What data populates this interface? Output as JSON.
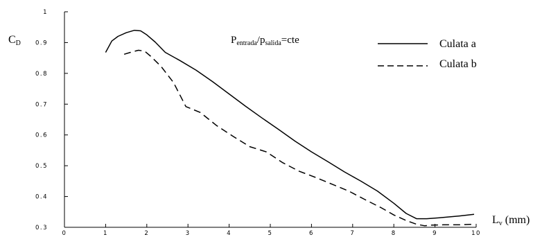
{
  "chart_data": {
    "type": "line",
    "title": "",
    "annotation": {
      "p1_main": "P",
      "p1_sub": "entrada",
      "slash": "/",
      "p2_main": "p",
      "p2_sub": "salida",
      "suffix": "=cte"
    },
    "ylabel": {
      "main": "C",
      "sub": "D"
    },
    "xlabel": {
      "main": "L",
      "sub": "v",
      "unit": " (mm)"
    },
    "xlim": [
      0,
      10
    ],
    "ylim": [
      0.3,
      1.0
    ],
    "xticks": [
      "0",
      "1",
      "2",
      "3",
      "4",
      "5",
      "6",
      "7",
      "8",
      "9",
      "10"
    ],
    "yticks": [
      "1",
      "0.9",
      "0.8",
      "0.7",
      "0.6",
      "0.5",
      "0.4",
      "0.3"
    ],
    "grid": false,
    "legend_position": "top-right",
    "series": [
      {
        "name": "Culata a",
        "style": "solid",
        "x": [
          1.0,
          1.15,
          1.3,
          1.5,
          1.7,
          1.85,
          2.0,
          2.2,
          2.45,
          2.8,
          3.2,
          3.6,
          4.0,
          4.4,
          4.8,
          5.2,
          5.6,
          6.0,
          6.4,
          6.8,
          7.2,
          7.6,
          8.0,
          8.3,
          8.55,
          8.8,
          9.2,
          9.6,
          9.95
        ],
        "values": [
          0.868,
          0.905,
          0.92,
          0.932,
          0.94,
          0.938,
          0.925,
          0.902,
          0.868,
          0.842,
          0.81,
          0.773,
          0.733,
          0.693,
          0.655,
          0.618,
          0.58,
          0.545,
          0.513,
          0.48,
          0.45,
          0.418,
          0.378,
          0.345,
          0.328,
          0.328,
          0.332,
          0.337,
          0.342
        ]
      },
      {
        "name": "Culata b",
        "style": "dashed",
        "x": [
          1.45,
          1.6,
          1.8,
          1.95,
          2.1,
          2.35,
          2.65,
          2.95,
          3.3,
          3.7,
          4.1,
          4.5,
          4.9,
          5.3,
          5.7,
          6.1,
          6.5,
          6.9,
          7.3,
          7.7,
          8.0,
          8.3,
          8.55,
          8.75,
          8.9,
          9.2,
          9.6,
          9.95
        ],
        "values": [
          0.862,
          0.868,
          0.875,
          0.872,
          0.855,
          0.822,
          0.77,
          0.692,
          0.673,
          0.63,
          0.595,
          0.562,
          0.545,
          0.51,
          0.482,
          0.462,
          0.44,
          0.418,
          0.39,
          0.363,
          0.34,
          0.322,
          0.31,
          0.305,
          0.307,
          0.308,
          0.308,
          0.31
        ]
      }
    ]
  }
}
